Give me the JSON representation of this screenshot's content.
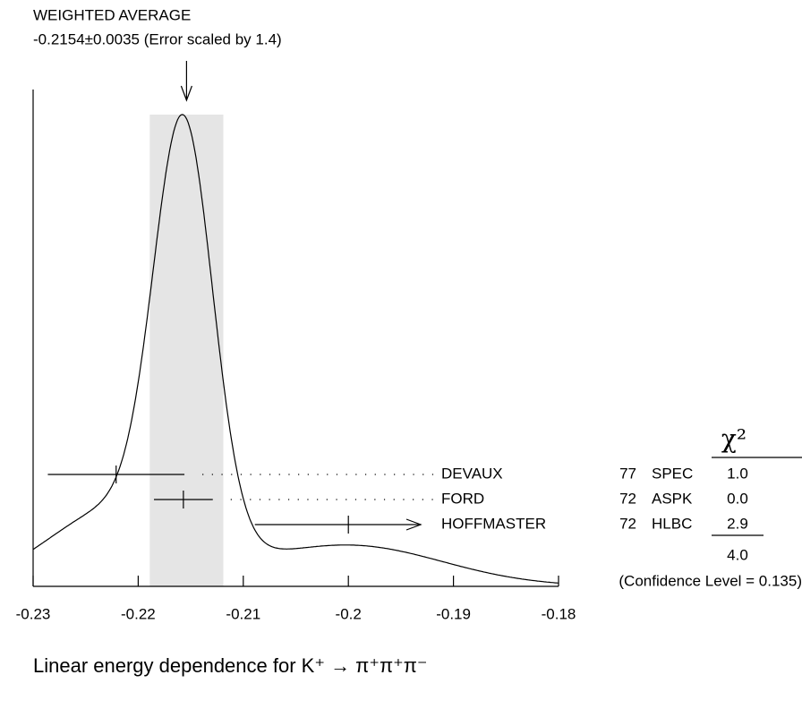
{
  "chart_data": {
    "type": "ideogram",
    "title": "WEIGHTED AVERAGE",
    "subtitle": "-0.2154±0.0035 (Error scaled by 1.4)",
    "average": -0.2154,
    "average_error": 0.0035,
    "x_label": "Linear energy dependence for K⁺ → π⁺π⁺π⁻",
    "xlim": [
      -0.23,
      -0.18
    ],
    "xticks": [
      -0.23,
      -0.22,
      -0.21,
      -0.2,
      -0.19,
      -0.18
    ],
    "categories": [
      "DEVAUX",
      "FORD",
      "HOFFMASTER"
    ],
    "years": [
      "77",
      "72",
      "72"
    ],
    "techniques": [
      "SPEC",
      "ASPK",
      "HLBC"
    ],
    "values": [
      -0.2221,
      -0.2157,
      -0.2
    ],
    "errors": [
      0.0065,
      0.0028,
      0.0089
    ],
    "chi2_header": "χ²",
    "chi2": [
      1.0,
      0.0,
      2.9
    ],
    "chi2_labels": [
      "1.0",
      "0.0",
      "2.9"
    ],
    "chi2_total": 4.0,
    "chi2_total_label": "4.0",
    "confidence_label": "(Confidence Level = 0.135)",
    "band_color": "#e5e5e5"
  }
}
